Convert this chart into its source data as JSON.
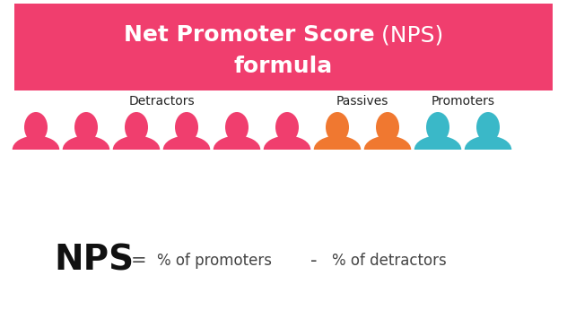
{
  "bg_color": "#ffffff",
  "header_bg_color": "#f03e6e",
  "detractor_color": "#f03e6e",
  "passive_color": "#f07830",
  "promoter_color": "#3ab8c8",
  "detractor_count": 6,
  "passive_count": 2,
  "promoter_count": 2,
  "label_detractors": "Detractors",
  "label_passives": "Passives",
  "label_promoters": "Promoters",
  "label_fontsize": 10,
  "label_color": "#222222",
  "formula_nps": "NPS",
  "formula_eq": "=",
  "formula_pct_promoters": "% of promoters",
  "formula_minus": "-",
  "formula_pct_detractors": "% of detractors",
  "formula_fontsize_nps": 28,
  "formula_fontsize_rest": 12,
  "formula_color": "#111111",
  "formula_eq_color": "#444444",
  "figure_width": 6.32,
  "figure_height": 3.46,
  "figure_dpi": 100,
  "header_line1_bold": "Net Promoter Score",
  "header_line1_normal": " (NPS)",
  "header_line2": "formula",
  "header_fontsize": 18
}
